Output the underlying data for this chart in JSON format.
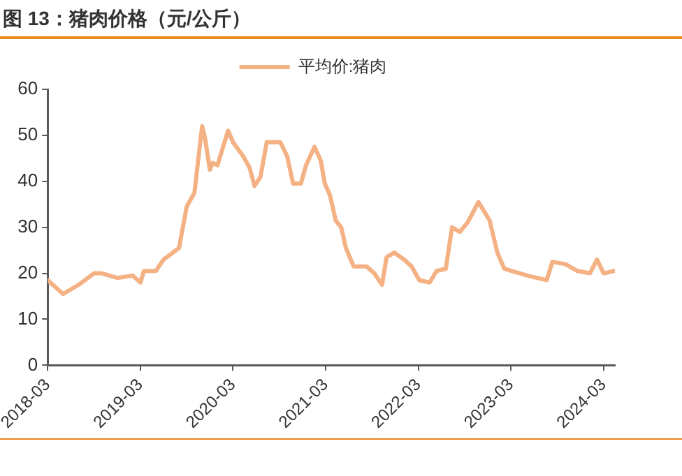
{
  "chart_data": {
    "type": "line",
    "title": "图 13：猪肉价格（元/公斤）",
    "x": [
      "2018-03",
      "2018-05",
      "2018-07",
      "2018-09",
      "2018-10",
      "2018-12",
      "2019-02",
      "2019-03",
      "2019-03-15",
      "2019-05",
      "2019-06",
      "2019-08",
      "2019-09",
      "2019-10",
      "2019-11",
      "2019-11-12",
      "2019-12",
      "2019-12-12",
      "2020-01",
      "2020-01-20",
      "2020-02-12",
      "2020-03",
      "2020-04-10",
      "2020-05-05",
      "2020-05-25",
      "2020-06-18",
      "2020-07-12",
      "2020-09-05",
      "2020-10",
      "2020-10-25",
      "2020-11-25",
      "2020-12-15",
      "2021-01-18",
      "2021-02-12",
      "2021-02-28",
      "2021-03-18",
      "2021-04-10",
      "2021-05",
      "2021-05-20",
      "2021-06-20",
      "2021-08-10",
      "2021-09-10",
      "2021-10-10",
      "2021-10-28",
      "2021-11-28",
      "2022-01-05",
      "2022-02-05",
      "2022-03-05",
      "2022-04-15",
      "2022-05-12",
      "2022-06-18",
      "2022-07-12",
      "2022-08-12",
      "2022-09-12",
      "2022-10-25",
      "2022-12-08",
      "2023-01-08",
      "2023-02-05",
      "2023-03-05",
      "2023-05-05",
      "2023-07-20",
      "2023-08-12",
      "2023-10-02",
      "2023-11-20",
      "2024-01-08",
      "2024-02-05",
      "2024-03-01",
      "2024-04-12"
    ],
    "series": [
      {
        "name": "平均价:猪肉",
        "color": "#f4b183",
        "values": [
          18.5,
          15.5,
          17.5,
          20,
          20,
          19,
          19.5,
          18,
          20.5,
          20.5,
          23,
          25.5,
          34.5,
          37.5,
          52,
          49.5,
          42.5,
          44,
          43.5,
          47,
          51,
          48.5,
          45.5,
          43,
          39,
          41,
          48.5,
          48.5,
          45.5,
          39.5,
          39.5,
          43.5,
          47.5,
          44.5,
          39.5,
          37,
          31.5,
          30,
          25.5,
          21.5,
          21.5,
          20,
          17.5,
          23.5,
          24.5,
          23,
          21.5,
          18.5,
          18,
          20.5,
          21,
          30,
          29,
          31,
          35.5,
          31.5,
          24.5,
          21,
          20.5,
          19.5,
          18.5,
          22.5,
          22,
          20.5,
          20,
          23,
          20,
          20.5
        ]
      }
    ],
    "xlim": [
      "2018-03",
      "2024-04-15"
    ],
    "xticks": [
      "2018-03",
      "2019-03",
      "2020-03",
      "2021-03",
      "2022-03",
      "2023-03",
      "2024-03"
    ],
    "ylim": [
      0,
      60
    ],
    "yticks": [
      0,
      10,
      20,
      30,
      40,
      50,
      60
    ],
    "grid": false,
    "legend": "top",
    "marker": "none",
    "line_style": "solid"
  }
}
